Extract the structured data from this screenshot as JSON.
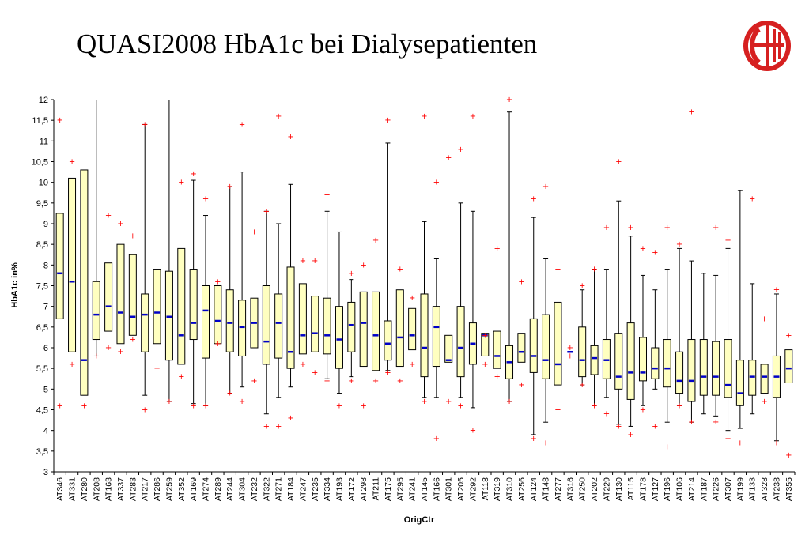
{
  "title": "QUASI2008 HbA1c bei Dialysepatienten",
  "colors": {
    "box_fill": "#ffffc0",
    "box_stroke": "#000000",
    "median": "#0000c8",
    "outlier": "#ff0000",
    "logo_red": "#d62020"
  },
  "icons": {
    "logo": "red-circle-emblem-logo"
  },
  "chart_data": {
    "type": "boxplot",
    "xlabel": "OrigCtr",
    "ylabel": "HbA1c in%",
    "ylim": [
      3,
      12
    ],
    "yticks": [
      "3",
      "3,5",
      "4",
      "4,5",
      "5",
      "5,5",
      "6",
      "6,5",
      "7",
      "7,5",
      "8",
      "8,5",
      "9",
      "9,5",
      "10",
      "10,5",
      "11",
      "11,5",
      "12"
    ],
    "grid": false,
    "series": [
      {
        "c": "AT346",
        "lo": null,
        "q1": 6.7,
        "med": 7.8,
        "q3": 9.25,
        "hi": null,
        "out": [
          11.5,
          4.6
        ]
      },
      {
        "c": "AT331",
        "lo": null,
        "q1": 5.9,
        "med": 7.6,
        "q3": 10.1,
        "hi": null,
        "out": [
          10.5,
          5.6
        ]
      },
      {
        "c": "AT280",
        "lo": null,
        "q1": 4.85,
        "med": 5.7,
        "q3": 10.3,
        "hi": null,
        "out": [
          4.6
        ]
      },
      {
        "c": "AT208",
        "lo": 5.8,
        "q1": 6.2,
        "med": 6.8,
        "q3": 7.6,
        "hi": 12,
        "out": [
          5.8
        ]
      },
      {
        "c": "AT163",
        "lo": null,
        "q1": 6.4,
        "med": 7.0,
        "q3": 8.05,
        "hi": null,
        "out": [
          9.2,
          6.0
        ]
      },
      {
        "c": "AT337",
        "lo": null,
        "q1": 6.1,
        "med": 6.85,
        "q3": 8.5,
        "hi": null,
        "out": [
          9.0,
          5.9
        ]
      },
      {
        "c": "AT283",
        "lo": null,
        "q1": 6.3,
        "med": 6.75,
        "q3": 8.25,
        "hi": null,
        "out": [
          8.7,
          6.2
        ]
      },
      {
        "c": "AT217",
        "lo": 4.85,
        "q1": 5.9,
        "med": 6.8,
        "q3": 7.3,
        "hi": 11.4,
        "out": [
          11.4,
          4.5
        ]
      },
      {
        "c": "AT286",
        "lo": null,
        "q1": 6.1,
        "med": 6.85,
        "q3": 7.9,
        "hi": null,
        "out": [
          8.8,
          5.5
        ]
      },
      {
        "c": "AT259",
        "lo": 4.7,
        "q1": 5.7,
        "med": 6.75,
        "q3": 7.85,
        "hi": 12,
        "out": [
          4.7
        ]
      },
      {
        "c": "AT352",
        "lo": null,
        "q1": 5.6,
        "med": 6.3,
        "q3": 8.4,
        "hi": null,
        "out": [
          10.0,
          5.3
        ]
      },
      {
        "c": "AT169",
        "lo": 4.65,
        "q1": 6.2,
        "med": 6.6,
        "q3": 7.9,
        "hi": 10.05,
        "out": [
          10.2,
          4.6
        ]
      },
      {
        "c": "AT274",
        "lo": 4.6,
        "q1": 5.75,
        "med": 6.9,
        "q3": 7.5,
        "hi": 9.2,
        "out": [
          9.6,
          4.6
        ]
      },
      {
        "c": "AT289",
        "lo": null,
        "q1": 6.1,
        "med": 6.65,
        "q3": 7.5,
        "hi": null,
        "out": [
          7.6,
          6.1
        ]
      },
      {
        "c": "AT244",
        "lo": 4.9,
        "q1": 5.9,
        "med": 6.6,
        "q3": 7.4,
        "hi": 9.9,
        "out": [
          9.9,
          4.9
        ]
      },
      {
        "c": "AT304",
        "lo": 5.05,
        "q1": 5.8,
        "med": 6.5,
        "q3": 7.15,
        "hi": 10.25,
        "out": [
          11.4,
          4.7
        ]
      },
      {
        "c": "AT232",
        "lo": null,
        "q1": 6.0,
        "med": 6.6,
        "q3": 7.2,
        "hi": null,
        "out": [
          8.8,
          5.2
        ]
      },
      {
        "c": "AT322",
        "lo": 4.4,
        "q1": 5.6,
        "med": 6.15,
        "q3": 7.5,
        "hi": 9.3,
        "out": [
          9.3,
          4.1
        ]
      },
      {
        "c": "AT271",
        "lo": 4.8,
        "q1": 5.75,
        "med": 6.6,
        "q3": 7.3,
        "hi": 9.0,
        "out": [
          11.6,
          4.1
        ]
      },
      {
        "c": "AT184",
        "lo": 5.05,
        "q1": 5.5,
        "med": 5.9,
        "q3": 7.95,
        "hi": 9.95,
        "out": [
          11.1,
          4.3
        ]
      },
      {
        "c": "AT247",
        "lo": null,
        "q1": 5.85,
        "med": 6.3,
        "q3": 7.55,
        "hi": null,
        "out": [
          8.1,
          5.6
        ]
      },
      {
        "c": "AT235",
        "lo": null,
        "q1": 5.9,
        "med": 6.35,
        "q3": 7.25,
        "hi": null,
        "out": [
          8.1,
          5.4
        ]
      },
      {
        "c": "AT334",
        "lo": 5.25,
        "q1": 5.85,
        "med": 6.3,
        "q3": 7.2,
        "hi": 9.3,
        "out": [
          9.7,
          5.2
        ]
      },
      {
        "c": "AT193",
        "lo": 4.9,
        "q1": 5.5,
        "med": 6.2,
        "q3": 7.0,
        "hi": 8.8,
        "out": [
          4.6
        ]
      },
      {
        "c": "AT172",
        "lo": 5.3,
        "q1": 5.9,
        "med": 6.55,
        "q3": 7.1,
        "hi": 7.65,
        "out": [
          7.8,
          5.2
        ]
      },
      {
        "c": "AT298",
        "lo": null,
        "q1": 5.55,
        "med": 6.6,
        "q3": 7.35,
        "hi": null,
        "out": [
          8.0,
          4.6
        ]
      },
      {
        "c": "AT211",
        "lo": null,
        "q1": 5.45,
        "med": 6.3,
        "q3": 7.35,
        "hi": null,
        "out": [
          8.6,
          5.2
        ]
      },
      {
        "c": "AT175",
        "lo": 5.45,
        "q1": 5.7,
        "med": 6.1,
        "q3": 6.65,
        "hi": 10.95,
        "out": [
          11.5,
          5.4
        ]
      },
      {
        "c": "AT295",
        "lo": null,
        "q1": 5.55,
        "med": 6.25,
        "q3": 7.4,
        "hi": null,
        "out": [
          7.9,
          5.2
        ]
      },
      {
        "c": "AT241",
        "lo": null,
        "q1": 5.95,
        "med": 6.3,
        "q3": 6.95,
        "hi": null,
        "out": [
          7.2,
          5.6
        ]
      },
      {
        "c": "AT145",
        "lo": 4.8,
        "q1": 5.3,
        "med": 6.0,
        "q3": 7.3,
        "hi": 9.05,
        "out": [
          11.6,
          4.7
        ]
      },
      {
        "c": "AT166",
        "lo": 4.8,
        "q1": 5.55,
        "med": 6.5,
        "q3": 7.0,
        "hi": 8.15,
        "out": [
          10.0,
          3.8
        ]
      },
      {
        "c": "AT301",
        "lo": null,
        "q1": 5.65,
        "med": 5.7,
        "q3": 6.3,
        "hi": null,
        "out": [
          10.6,
          4.7
        ]
      },
      {
        "c": "AT205",
        "lo": 4.8,
        "q1": 5.3,
        "med": 6.0,
        "q3": 7.0,
        "hi": 9.5,
        "out": [
          10.8,
          4.6
        ]
      },
      {
        "c": "AT292",
        "lo": 4.55,
        "q1": 5.6,
        "med": 6.1,
        "q3": 6.6,
        "hi": 9.3,
        "out": [
          11.6,
          4.0
        ]
      },
      {
        "c": "AT118",
        "lo": null,
        "q1": 5.8,
        "med": 6.3,
        "q3": 6.35,
        "hi": null,
        "out": [
          6.3,
          5.6
        ]
      },
      {
        "c": "AT319",
        "lo": null,
        "q1": 5.5,
        "med": 5.8,
        "q3": 6.4,
        "hi": null,
        "out": [
          8.4,
          5.3
        ]
      },
      {
        "c": "AT310",
        "lo": 4.7,
        "q1": 5.25,
        "med": 5.65,
        "q3": 6.05,
        "hi": 11.7,
        "out": [
          12.0,
          4.7
        ]
      },
      {
        "c": "AT256",
        "lo": null,
        "q1": 5.65,
        "med": 5.9,
        "q3": 6.35,
        "hi": null,
        "out": [
          7.6,
          5.1
        ]
      },
      {
        "c": "AT124",
        "lo": 3.9,
        "q1": 5.4,
        "med": 5.8,
        "q3": 6.7,
        "hi": 9.15,
        "out": [
          9.6,
          3.8
        ]
      },
      {
        "c": "AT148",
        "lo": 4.2,
        "q1": 5.25,
        "med": 5.7,
        "q3": 6.8,
        "hi": 8.15,
        "out": [
          9.9,
          3.7
        ]
      },
      {
        "c": "AT277",
        "lo": null,
        "q1": 5.1,
        "med": 5.6,
        "q3": 7.1,
        "hi": null,
        "out": [
          7.9,
          4.5
        ]
      },
      {
        "c": "AT316",
        "lo": null,
        "q1": null,
        "med": 5.9,
        "q3": null,
        "hi": null,
        "out": [
          6.0,
          5.8
        ]
      },
      {
        "c": "AT250",
        "lo": 5.1,
        "q1": 5.3,
        "med": 5.7,
        "q3": 6.5,
        "hi": 7.4,
        "out": [
          7.5,
          5.1
        ]
      },
      {
        "c": "AT202",
        "lo": 4.6,
        "q1": 5.35,
        "med": 5.75,
        "q3": 6.05,
        "hi": 7.9,
        "out": [
          7.9,
          4.6
        ]
      },
      {
        "c": "AT229",
        "lo": 4.8,
        "q1": 5.25,
        "med": 5.7,
        "q3": 6.2,
        "hi": 7.9,
        "out": [
          8.9,
          4.4
        ]
      },
      {
        "c": "AT130",
        "lo": 4.15,
        "q1": 5.0,
        "med": 5.3,
        "q3": 6.35,
        "hi": 9.55,
        "out": [
          10.5,
          4.1
        ]
      },
      {
        "c": "AT115",
        "lo": 4.1,
        "q1": 4.75,
        "med": 5.4,
        "q3": 6.6,
        "hi": 8.7,
        "out": [
          8.9,
          3.9
        ]
      },
      {
        "c": "AT178",
        "lo": 4.6,
        "q1": 5.2,
        "med": 5.4,
        "q3": 6.25,
        "hi": 7.75,
        "out": [
          8.4,
          4.5
        ]
      },
      {
        "c": "AT127",
        "lo": 5.0,
        "q1": 5.25,
        "med": 5.5,
        "q3": 6.0,
        "hi": 7.4,
        "out": [
          8.3,
          4.1
        ]
      },
      {
        "c": "AT196",
        "lo": 4.2,
        "q1": 5.05,
        "med": 5.5,
        "q3": 6.2,
        "hi": 7.9,
        "out": [
          8.9,
          3.6
        ]
      },
      {
        "c": "AT106",
        "lo": 4.6,
        "q1": 4.9,
        "med": 5.2,
        "q3": 5.9,
        "hi": 8.4,
        "out": [
          8.5,
          4.6
        ]
      },
      {
        "c": "AT214",
        "lo": 4.2,
        "q1": 4.7,
        "med": 5.2,
        "q3": 6.2,
        "hi": 8.1,
        "out": [
          11.7,
          4.2
        ]
      },
      {
        "c": "AT187",
        "lo": 4.4,
        "q1": 4.85,
        "med": 5.3,
        "q3": 6.2,
        "hi": 7.8,
        "out": []
      },
      {
        "c": "AT226",
        "lo": 4.35,
        "q1": 4.85,
        "med": 5.3,
        "q3": 6.15,
        "hi": 7.75,
        "out": [
          8.9,
          4.2
        ]
      },
      {
        "c": "AT307",
        "lo": 4.0,
        "q1": 4.8,
        "med": 5.1,
        "q3": 6.2,
        "hi": 8.4,
        "out": [
          8.6,
          3.8
        ]
      },
      {
        "c": "AT199",
        "lo": 4.05,
        "q1": 4.6,
        "med": 4.9,
        "q3": 5.7,
        "hi": 9.8,
        "out": [
          3.7
        ]
      },
      {
        "c": "AT133",
        "lo": 4.4,
        "q1": 4.85,
        "med": 5.3,
        "q3": 5.7,
        "hi": 7.55,
        "out": [
          9.6
        ]
      },
      {
        "c": "AT328",
        "lo": null,
        "q1": 4.9,
        "med": 5.3,
        "q3": 5.6,
        "hi": null,
        "out": [
          6.7,
          4.7
        ]
      },
      {
        "c": "AT238",
        "lo": 3.75,
        "q1": 4.8,
        "med": 5.3,
        "q3": 5.8,
        "hi": 7.3,
        "out": [
          7.4,
          3.7
        ]
      },
      {
        "c": "AT355",
        "lo": null,
        "q1": 5.15,
        "med": 5.5,
        "q3": 5.95,
        "hi": null,
        "out": [
          6.3,
          3.4
        ]
      }
    ]
  }
}
